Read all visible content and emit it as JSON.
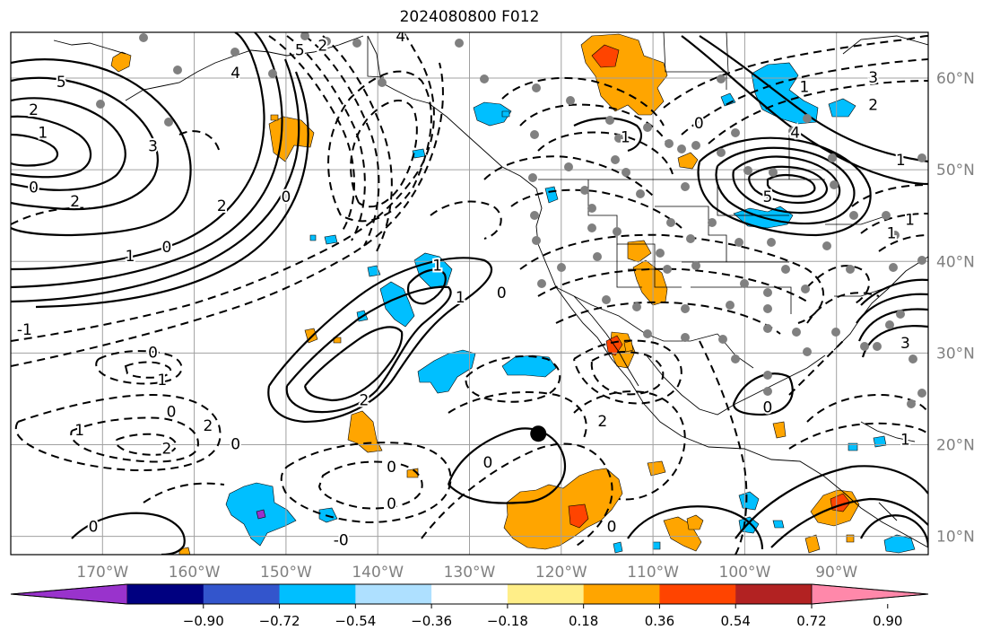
{
  "title": "2024080800 F012",
  "map": {
    "lon_min": -180,
    "lon_max": -80,
    "lat_min": 8,
    "lat_max": 65,
    "lon_ticks": [
      {
        "lon": -170,
        "label": "170°W"
      },
      {
        "lon": -160,
        "label": "160°W"
      },
      {
        "lon": -150,
        "label": "150°W"
      },
      {
        "lon": -140,
        "label": "140°W"
      },
      {
        "lon": -130,
        "label": "130°W"
      },
      {
        "lon": -120,
        "label": "120°W"
      },
      {
        "lon": -110,
        "label": "110°W"
      },
      {
        "lon": -100,
        "label": "100°W"
      },
      {
        "lon": -90,
        "label": "90°W"
      }
    ],
    "lat_ticks": [
      {
        "lat": 60,
        "label": "60°N"
      },
      {
        "lat": 50,
        "label": "50°N"
      },
      {
        "lat": 40,
        "label": "40°N"
      },
      {
        "lat": 30,
        "label": "30°N"
      },
      {
        "lat": 20,
        "label": "20°N"
      },
      {
        "lat": 10,
        "label": "10°N"
      }
    ],
    "grid": true,
    "storm_marker": {
      "lon": -122.5,
      "lat": 21.2,
      "color": "#000000"
    }
  },
  "colorbar": {
    "colors": [
      "#9933cc",
      "#000080",
      "#3355cc",
      "#00bfff",
      "#aee0ff",
      "#ffffff",
      "#ffee88",
      "#ffa500",
      "#ff4400",
      "#b22222",
      "#ff88aa"
    ],
    "ticks": [
      "−0.90",
      "−0.72",
      "−0.54",
      "−0.36",
      "−0.18",
      "0.18",
      "0.36",
      "0.54",
      "0.72",
      "0.90"
    ]
  },
  "contour_labels": [
    {
      "lon": -174.5,
      "lat": 59.5,
      "text": "5"
    },
    {
      "lon": -177.5,
      "lat": 56.5,
      "text": "2"
    },
    {
      "lon": -176.5,
      "lat": 54,
      "text": "1"
    },
    {
      "lon": -164.5,
      "lat": 52.5,
      "text": "3"
    },
    {
      "lon": -177.5,
      "lat": 48,
      "text": "0"
    },
    {
      "lon": -173,
      "lat": 46.5,
      "text": "2"
    },
    {
      "lon": -157,
      "lat": 46,
      "text": "2"
    },
    {
      "lon": -167,
      "lat": 40.5,
      "text": "1"
    },
    {
      "lon": -163,
      "lat": 41.5,
      "text": "0"
    },
    {
      "lon": -150,
      "lat": 47,
      "text": "0"
    },
    {
      "lon": -178.5,
      "lat": 32.5,
      "text": "-1"
    },
    {
      "lon": -164.5,
      "lat": 30,
      "text": "0"
    },
    {
      "lon": -163.5,
      "lat": 27,
      "text": "1"
    },
    {
      "lon": -162.5,
      "lat": 23.5,
      "text": "0"
    },
    {
      "lon": -172.5,
      "lat": 21.5,
      "text": "1"
    },
    {
      "lon": -158.5,
      "lat": 22,
      "text": "2"
    },
    {
      "lon": -163,
      "lat": 19.5,
      "text": "2"
    },
    {
      "lon": -155.5,
      "lat": 20,
      "text": "0"
    },
    {
      "lon": -141.5,
      "lat": 24.8,
      "text": "2"
    },
    {
      "lon": -138.5,
      "lat": 13.5,
      "text": "0"
    },
    {
      "lon": -138.5,
      "lat": 17.5,
      "text": "0"
    },
    {
      "lon": -171,
      "lat": 11,
      "text": "0"
    },
    {
      "lon": -144,
      "lat": 9.5,
      "text": "-0"
    },
    {
      "lon": -131,
      "lat": 36,
      "text": "1"
    },
    {
      "lon": -126.5,
      "lat": 36.5,
      "text": "0"
    },
    {
      "lon": -133.5,
      "lat": 39.5,
      "text": "1"
    },
    {
      "lon": -128,
      "lat": 18,
      "text": "0"
    },
    {
      "lon": -115.5,
      "lat": 22.5,
      "text": "2"
    },
    {
      "lon": -114.5,
      "lat": 11,
      "text": "0"
    },
    {
      "lon": -105,
      "lat": 55,
      "text": "0"
    },
    {
      "lon": -113,
      "lat": 53.5,
      "text": "1"
    },
    {
      "lon": -86,
      "lat": 60,
      "text": "3"
    },
    {
      "lon": -93.5,
      "lat": 59,
      "text": "1"
    },
    {
      "lon": -94.5,
      "lat": 54,
      "text": "4"
    },
    {
      "lon": -97.5,
      "lat": 47,
      "text": "5"
    },
    {
      "lon": -86,
      "lat": 57,
      "text": "2"
    },
    {
      "lon": -83,
      "lat": 51,
      "text": "1"
    },
    {
      "lon": -82,
      "lat": 44.5,
      "text": "1"
    },
    {
      "lon": -84,
      "lat": 43,
      "text": "1"
    },
    {
      "lon": -82.5,
      "lat": 20.5,
      "text": "1"
    },
    {
      "lon": -97.5,
      "lat": 24,
      "text": "0"
    },
    {
      "lon": -148.5,
      "lat": 63,
      "text": "5"
    },
    {
      "lon": -155.5,
      "lat": 60.5,
      "text": "4"
    },
    {
      "lon": -146,
      "lat": 63.5,
      "text": "2"
    },
    {
      "lon": -137.5,
      "lat": 64.5,
      "text": "4"
    },
    {
      "lon": -82.5,
      "lat": 31,
      "text": "3"
    }
  ]
}
